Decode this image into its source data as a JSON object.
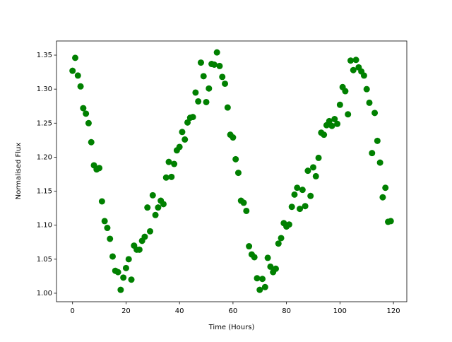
{
  "chart_data": {
    "type": "scatter",
    "xlabel": "Time (Hours)",
    "ylabel": "Normalised Flux",
    "color": "#008000",
    "x": [
      0,
      1,
      2,
      3,
      4,
      5,
      6,
      7,
      8,
      9,
      10,
      11,
      12,
      13,
      14,
      15,
      16,
      17,
      18,
      19,
      20,
      21,
      22,
      23,
      24,
      25,
      26,
      27,
      28,
      29,
      30,
      31,
      32,
      33,
      34,
      35,
      36,
      37,
      38,
      39,
      40,
      41,
      42,
      43,
      44,
      45,
      46,
      47,
      48,
      49,
      50,
      51,
      52,
      53,
      54,
      55,
      56,
      57,
      58,
      59,
      60,
      61,
      62,
      63,
      64,
      65,
      66,
      67,
      68,
      69,
      70,
      71,
      72,
      73,
      74,
      75,
      76,
      77,
      78,
      79,
      80,
      81,
      82,
      83,
      84,
      85,
      86,
      87,
      88,
      89,
      90,
      91,
      92,
      93,
      94,
      95,
      96,
      97,
      98,
      99,
      100,
      101,
      102,
      103,
      104,
      105,
      106,
      107,
      108,
      109,
      110,
      111,
      112,
      113,
      114,
      115,
      116,
      117,
      118,
      119
    ],
    "values": [
      1.327,
      1.346,
      1.32,
      1.304,
      1.272,
      1.264,
      1.25,
      1.222,
      1.188,
      1.182,
      1.184,
      1.135,
      1.106,
      1.096,
      1.08,
      1.054,
      1.033,
      1.031,
      1.005,
      1.023,
      1.037,
      1.05,
      1.02,
      1.07,
      1.064,
      1.064,
      1.077,
      1.083,
      1.126,
      1.091,
      1.144,
      1.115,
      1.126,
      1.136,
      1.131,
      1.17,
      1.193,
      1.171,
      1.19,
      1.21,
      1.215,
      1.237,
      1.226,
      1.251,
      1.258,
      1.259,
      1.295,
      1.282,
      1.339,
      1.319,
      1.281,
      1.301,
      1.337,
      1.336,
      1.354,
      1.334,
      1.318,
      1.308,
      1.273,
      1.233,
      1.229,
      1.197,
      1.177,
      1.136,
      1.133,
      1.121,
      1.069,
      1.057,
      1.053,
      1.022,
      1.005,
      1.021,
      1.009,
      1.052,
      1.039,
      1.031,
      1.036,
      1.073,
      1.081,
      1.103,
      1.098,
      1.101,
      1.127,
      1.145,
      1.155,
      1.124,
      1.152,
      1.128,
      1.18,
      1.143,
      1.185,
      1.172,
      1.199,
      1.236,
      1.233,
      1.247,
      1.253,
      1.246,
      1.256,
      1.249,
      1.277,
      1.303,
      1.297,
      1.263,
      1.342,
      1.328,
      1.343,
      1.332,
      1.326,
      1.32,
      1.3,
      1.28,
      1.206,
      1.265,
      1.224,
      1.192,
      1.141,
      1.155,
      1.105,
      1.106
    ],
    "xlim": [
      -6,
      125
    ],
    "ylim": [
      0.9875,
      1.3708
    ],
    "xticks": [
      0,
      20,
      40,
      60,
      80,
      100,
      120
    ],
    "yticks": [
      {
        "value": 1.0,
        "label": "1.00"
      },
      {
        "value": 1.05,
        "label": "1.05"
      },
      {
        "value": 1.1,
        "label": "1.10"
      },
      {
        "value": 1.15,
        "label": "1.15"
      },
      {
        "value": 1.2,
        "label": "1.20"
      },
      {
        "value": 1.25,
        "label": "1.25"
      },
      {
        "value": 1.3,
        "label": "1.30"
      },
      {
        "value": 1.35,
        "label": "1.35"
      }
    ]
  }
}
